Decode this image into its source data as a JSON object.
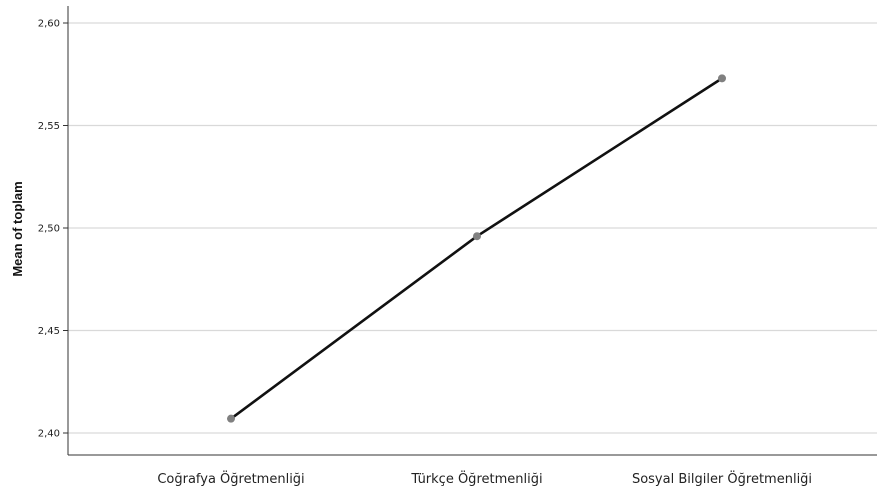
{
  "chart_data": {
    "type": "line",
    "categories": [
      "Coğrafya Öğretmenliği",
      "Türkçe Öğretmenliği",
      "Sosyal Bilgiler Öğretmenliği"
    ],
    "series": [
      {
        "values": [
          2.407,
          2.496,
          2.573
        ]
      }
    ],
    "ylabel": "Mean of toplam",
    "xlabel": "",
    "ylim": [
      2.4,
      2.6
    ],
    "yticks": [
      2.4,
      2.45,
      2.5,
      2.55,
      2.6
    ],
    "ytick_labels": [
      "2,40",
      "2,45",
      "2,50",
      "2,55",
      "2,60"
    ],
    "grid": "horizontal",
    "legend": "none",
    "colors": {
      "line": "#111111",
      "marker": "#808080",
      "grid": "#d9d9d9",
      "axis": "#333333"
    }
  }
}
